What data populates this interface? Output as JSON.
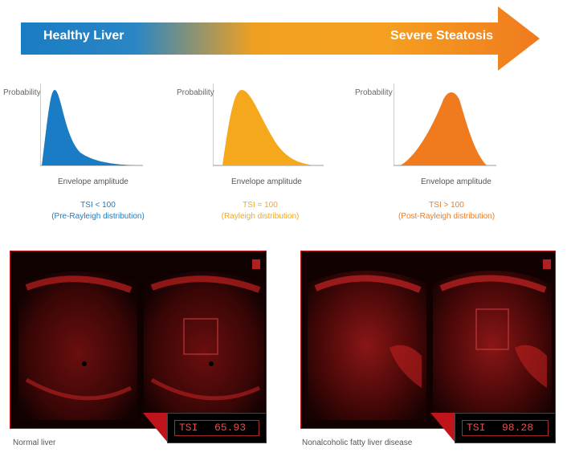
{
  "arrow": {
    "left_label": "Healthy Liver",
    "right_label": "Severe Steatosis",
    "colors": {
      "start": "#1a7cc4",
      "mid": "#f5a623",
      "end": "#f07a1e"
    }
  },
  "distributions": [
    {
      "ylabel": "Probability",
      "xlabel": "Envelope amplitude",
      "tsi": "TSI < 100",
      "desc": "(Pre-Rayleigh distribution)",
      "color": "#1a7cc4"
    },
    {
      "ylabel": "Probability",
      "xlabel": "Envelope amplitude",
      "tsi": "TSI = 100",
      "desc": "(Rayleigh distribution)",
      "color": "#f5a81c"
    },
    {
      "ylabel": "Probability",
      "xlabel": "Envelope amplitude",
      "tsi": "TSI > 100",
      "desc": "(Post-Rayleigh distribution)",
      "color": "#f07a1e"
    }
  ],
  "images": [
    {
      "caption": "Normal liver",
      "tsi_label": "TSI",
      "tsi_value": "65.93"
    },
    {
      "caption": "Nonalcoholic fatty liver disease",
      "tsi_label": "TSI",
      "tsi_value": "98.28"
    }
  ],
  "colors": {
    "panel_border": "#c0141c",
    "ultrasound": "#b01818"
  }
}
